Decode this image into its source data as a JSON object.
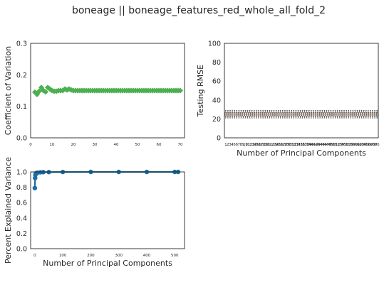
{
  "figure": {
    "title": "boneage || boneage_features_red_whole_all_fold_2"
  },
  "colors": {
    "cv_series": "#4caf50",
    "variance_series": "#1a6fa3",
    "box_median": "#ff6a00",
    "box_edge": "#262626"
  },
  "chart_data": [
    {
      "id": "cv",
      "type": "scatter",
      "marker": "diamond",
      "xlabel": "",
      "ylabel": "Coefficient of Variation",
      "xlim": [
        0,
        72
      ],
      "ylim": [
        0,
        0.3
      ],
      "xticks": [
        0,
        10,
        20,
        30,
        40,
        50,
        60,
        70
      ],
      "yticks": [
        0.0,
        0.1,
        0.2,
        0.3
      ],
      "ytick_labels": [
        "0.0",
        "0.1",
        "0.2",
        "0.3"
      ],
      "grid": false,
      "x": [
        2,
        3,
        4,
        5,
        6,
        7,
        8,
        9,
        10,
        11,
        12,
        13,
        14,
        15,
        16,
        17,
        18,
        19,
        20,
        21,
        22,
        23,
        24,
        25,
        26,
        27,
        28,
        29,
        30,
        31,
        32,
        33,
        34,
        35,
        36,
        37,
        38,
        39,
        40,
        41,
        42,
        43,
        44,
        45,
        46,
        47,
        48,
        49,
        50,
        51,
        52,
        53,
        54,
        55,
        56,
        57,
        58,
        59,
        60,
        61,
        62,
        63,
        64,
        65,
        66,
        67,
        68,
        69,
        70
      ],
      "y": [
        0.145,
        0.138,
        0.148,
        0.16,
        0.15,
        0.146,
        0.16,
        0.155,
        0.15,
        0.148,
        0.148,
        0.15,
        0.15,
        0.15,
        0.155,
        0.152,
        0.155,
        0.152,
        0.15,
        0.15,
        0.15,
        0.15,
        0.15,
        0.15,
        0.15,
        0.15,
        0.15,
        0.15,
        0.15,
        0.15,
        0.15,
        0.15,
        0.15,
        0.15,
        0.15,
        0.15,
        0.15,
        0.15,
        0.15,
        0.15,
        0.15,
        0.15,
        0.15,
        0.15,
        0.15,
        0.15,
        0.15,
        0.15,
        0.15,
        0.15,
        0.15,
        0.15,
        0.15,
        0.15,
        0.15,
        0.15,
        0.15,
        0.15,
        0.15,
        0.15,
        0.15,
        0.15,
        0.15,
        0.15,
        0.15,
        0.15,
        0.15,
        0.15,
        0.15
      ]
    },
    {
      "id": "rmse",
      "type": "box",
      "xlabel": "Number of Principal Components",
      "ylabel": "Testing RMSE",
      "ylim": [
        0,
        100
      ],
      "yticks": [
        0,
        20,
        40,
        60,
        80,
        100
      ],
      "categories": [
        1,
        2,
        3,
        4,
        5,
        6,
        7,
        8,
        9,
        10,
        11,
        12,
        13,
        14,
        15,
        16,
        17,
        18,
        19,
        20,
        21,
        22,
        23,
        24,
        25,
        26,
        27,
        28,
        29,
        30,
        31,
        32,
        33,
        34,
        35,
        36,
        37,
        38,
        39,
        40,
        41,
        42,
        43,
        44,
        45,
        46,
        47,
        48,
        49,
        50,
        51,
        52,
        53,
        54,
        55,
        56,
        57,
        58,
        59,
        60,
        61,
        62,
        63,
        64,
        65,
        66,
        67,
        68,
        69,
        70
      ],
      "xtick_labels": [
        "1",
        "2",
        "3",
        "4",
        "5",
        "6",
        "7",
        "8",
        "9",
        "10",
        "11",
        "12",
        "13",
        "14",
        "15",
        "16",
        "17",
        "18",
        "19",
        "20",
        "21",
        "22",
        "23",
        "24",
        "25",
        "26",
        "27",
        "28",
        "29",
        "30",
        "31",
        "32",
        "33",
        "34",
        "35",
        "36",
        "37",
        "38",
        "39",
        "40",
        "41",
        "42",
        "43",
        "44",
        "45",
        "46",
        "47",
        "48",
        "49",
        "50",
        "51",
        "52",
        "53",
        "54",
        "55",
        "56",
        "57",
        "58",
        "59",
        "60",
        "61",
        "62",
        "63",
        "64",
        "65",
        "66",
        "67",
        "68",
        "69",
        "70"
      ],
      "whisker_low": 21,
      "q1": 23,
      "median": 25,
      "q3": 27,
      "whisker_high": 29,
      "grid": false
    },
    {
      "id": "variance",
      "type": "line",
      "marker": "circle",
      "xlabel": "Number of Principal Components",
      "ylabel": "Percent Explained Variance",
      "xlim": [
        -15,
        535
      ],
      "ylim": [
        0,
        1.0
      ],
      "xticks": [
        0,
        100,
        200,
        300,
        400,
        500
      ],
      "yticks": [
        0.0,
        0.2,
        0.4,
        0.6,
        0.8,
        1.0
      ],
      "ytick_labels": [
        "0.0",
        "0.2",
        "0.4",
        "0.6",
        "0.8",
        "1.0"
      ],
      "grid": false,
      "x": [
        0,
        1,
        2,
        3,
        5,
        10,
        20,
        30,
        50,
        100,
        200,
        300,
        400,
        500,
        512
      ],
      "y": [
        0.79,
        0.92,
        0.96,
        0.975,
        0.985,
        0.99,
        0.995,
        0.997,
        0.998,
        0.999,
        1.0,
        1.0,
        1.0,
        1.0,
        1.0
      ]
    }
  ]
}
